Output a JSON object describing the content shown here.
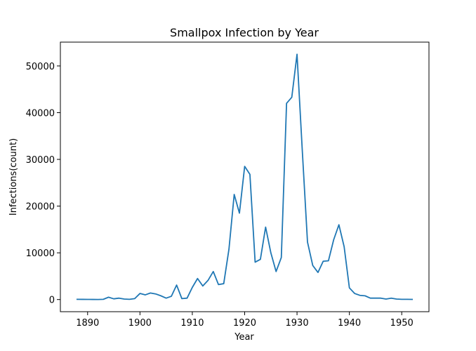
{
  "chart_data": {
    "type": "line",
    "title": "Smallpox Infection by Year",
    "xlabel": "Year",
    "ylabel": "Infections(count)",
    "xlim": [
      1884.8,
      1955.2
    ],
    "ylim": [
      -2600,
      55100
    ],
    "xticks": [
      1890,
      1900,
      1910,
      1920,
      1930,
      1940,
      1950
    ],
    "yticks": [
      0,
      10000,
      20000,
      30000,
      40000,
      50000
    ],
    "grid": false,
    "legend": "none",
    "colors": {
      "line": "#1f77b4"
    },
    "series": [
      {
        "x": [
          1888,
          1889,
          1890,
          1891,
          1892,
          1893,
          1894,
          1895,
          1896,
          1897,
          1898,
          1899,
          1900,
          1901,
          1902,
          1903,
          1904,
          1905,
          1906,
          1907,
          1908,
          1909,
          1910,
          1911,
          1912,
          1913,
          1914,
          1915,
          1916,
          1917,
          1918,
          1919,
          1920,
          1921,
          1922,
          1923,
          1924,
          1925,
          1926,
          1927,
          1928,
          1929,
          1930,
          1931,
          1932,
          1933,
          1934,
          1935,
          1936,
          1937,
          1938,
          1939,
          1940,
          1941,
          1942,
          1943,
          1944,
          1945,
          1946,
          1947,
          1948,
          1949,
          1950,
          1951,
          1952
        ],
        "y": [
          50,
          40,
          30,
          20,
          10,
          50,
          500,
          150,
          300,
          100,
          50,
          200,
          1300,
          1000,
          1400,
          1200,
          800,
          300,
          700,
          3100,
          200,
          300,
          2600,
          4500,
          2900,
          4100,
          6000,
          3200,
          3400,
          10800,
          22500,
          18500,
          28500,
          26800,
          8000,
          8600,
          15500,
          10000,
          6000,
          9000,
          42000,
          43300,
          52500,
          32000,
          12300,
          7300,
          5800,
          8200,
          8300,
          12800,
          16000,
          11300,
          2500,
          1300,
          900,
          800,
          300,
          300,
          300,
          100,
          300,
          100,
          50,
          50,
          30
        ]
      }
    ]
  }
}
